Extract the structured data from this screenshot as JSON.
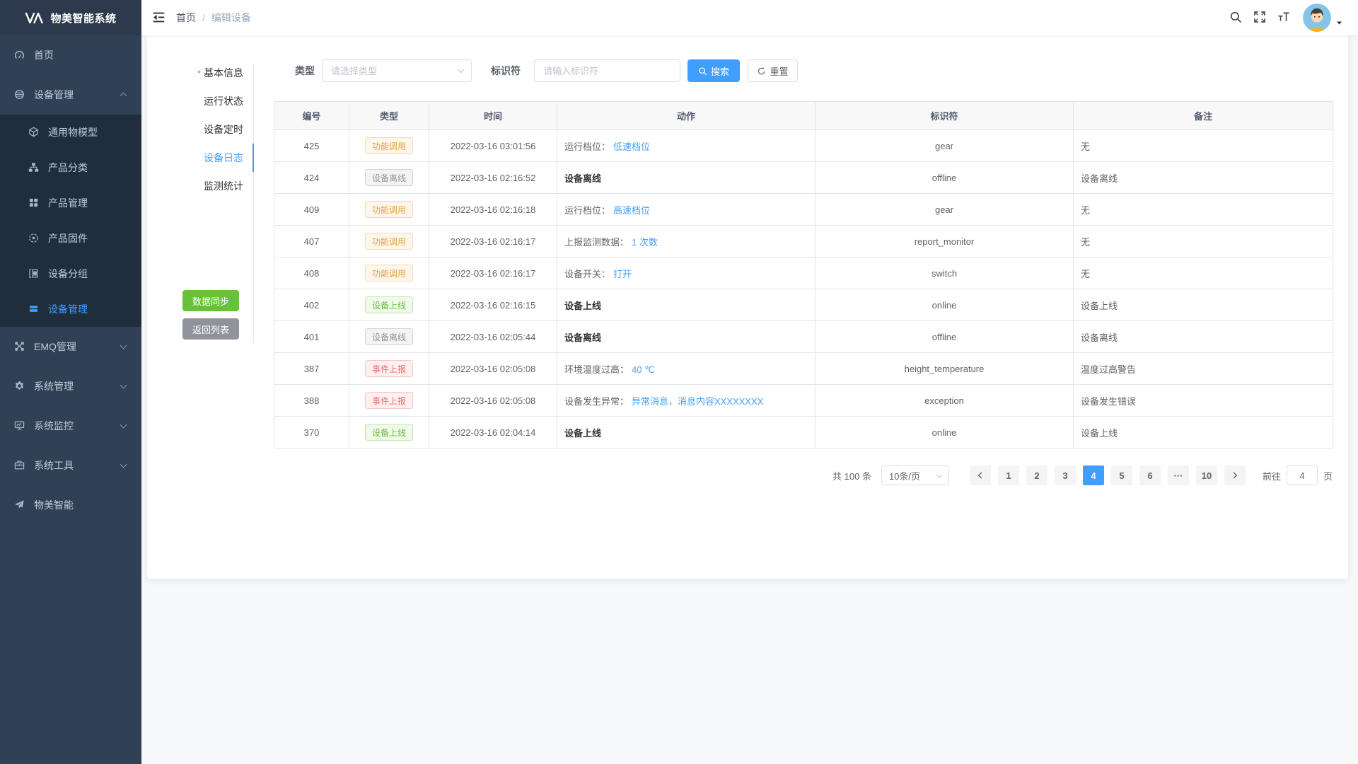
{
  "app": {
    "title": "物美智能系统",
    "logo_icon": "logo-vm-icon"
  },
  "colors": {
    "accent": "#409eff",
    "success": "#67c23a",
    "warning": "#e6a23c",
    "danger": "#f56c6c",
    "info": "#909399",
    "sidebar_bg": "#304156",
    "submenu_bg": "#1f2d3d"
  },
  "sidebar": {
    "items": [
      {
        "label": "首页",
        "icon": "dashboard-icon",
        "level": "1"
      },
      {
        "label": "设备管理",
        "icon": "devices-icon",
        "level": "1",
        "chevron": "up"
      },
      {
        "label": "通用物模型",
        "icon": "cube-icon",
        "level": "2"
      },
      {
        "label": "产品分类",
        "icon": "sitemap-icon",
        "level": "2"
      },
      {
        "label": "产品管理",
        "icon": "grid-icon",
        "level": "2"
      },
      {
        "label": "产品固件",
        "icon": "firmware-icon",
        "level": "2"
      },
      {
        "label": "设备分组",
        "icon": "group-icon",
        "level": "2"
      },
      {
        "label": "设备管理",
        "icon": "device-list-icon",
        "level": "2",
        "active": true
      },
      {
        "label": "EMQ管理",
        "icon": "emq-icon",
        "level": "1",
        "chevron": "down"
      },
      {
        "label": "系统管理",
        "icon": "gear-icon",
        "level": "1",
        "chevron": "down"
      },
      {
        "label": "系统监控",
        "icon": "monitor-icon",
        "level": "1",
        "chevron": "down"
      },
      {
        "label": "系统工具",
        "icon": "toolbox-icon",
        "level": "1",
        "chevron": "down"
      },
      {
        "label": "物美智能",
        "icon": "paper-plane-icon",
        "level": "1"
      }
    ]
  },
  "header": {
    "fold_icon": "fold-icon",
    "breadcrumb_home": "首页",
    "breadcrumb_separator": "/",
    "breadcrumb_current": "编辑设备",
    "icons": {
      "search": "search-icon",
      "fullscreen": "fullscreen-icon",
      "fontsize": "font-size-icon",
      "avatar": "avatar-image",
      "caret": "caret-down-icon"
    }
  },
  "tabs": {
    "required_mark": "*",
    "items": [
      {
        "label": "基本信息",
        "required": true
      },
      {
        "label": "运行状态"
      },
      {
        "label": "设备定时"
      },
      {
        "label": "设备日志",
        "active": true
      },
      {
        "label": "监测统计"
      }
    ]
  },
  "actions": {
    "sync_label": "数据同步",
    "back_label": "返回列表"
  },
  "filter": {
    "type_label": "类型",
    "type_placeholder": "请选择类型",
    "select_caret_icon": "chevron-down-icon",
    "identifier_label": "标识符",
    "identifier_placeholder": "请输入标识符",
    "search_label": "搜索",
    "search_icon": "search-icon",
    "reset_label": "重置",
    "reset_icon": "refresh-icon"
  },
  "table": {
    "columns": [
      "编号",
      "类型",
      "时间",
      "动作",
      "标识符",
      "备注"
    ],
    "rows": [
      {
        "id": "425",
        "tag": {
          "label": "功能调用",
          "type": "warning"
        },
        "time": "2022-03-16 03:01:56",
        "action": {
          "text": "运行档位：",
          "link": "低速档位",
          "bold": false
        },
        "identifier": "gear",
        "remark": "无"
      },
      {
        "id": "424",
        "tag": {
          "label": "设备离线",
          "type": "info"
        },
        "time": "2022-03-16 02:16:52",
        "action": {
          "text": "设备离线",
          "link": "",
          "bold": true
        },
        "identifier": "offline",
        "remark": "设备离线"
      },
      {
        "id": "409",
        "tag": {
          "label": "功能调用",
          "type": "warning"
        },
        "time": "2022-03-16 02:16:18",
        "action": {
          "text": "运行档位：",
          "link": "高速档位",
          "bold": false
        },
        "identifier": "gear",
        "remark": "无"
      },
      {
        "id": "407",
        "tag": {
          "label": "功能调用",
          "type": "warning"
        },
        "time": "2022-03-16 02:16:17",
        "action": {
          "text": "上报监测数据：",
          "link": "1 次数",
          "bold": false
        },
        "identifier": "report_monitor",
        "remark": "无"
      },
      {
        "id": "408",
        "tag": {
          "label": "功能调用",
          "type": "warning"
        },
        "time": "2022-03-16 02:16:17",
        "action": {
          "text": "设备开关：",
          "link": "打开",
          "bold": false
        },
        "identifier": "switch",
        "remark": "无"
      },
      {
        "id": "402",
        "tag": {
          "label": "设备上线",
          "type": "success"
        },
        "time": "2022-03-16 02:16:15",
        "action": {
          "text": "设备上线",
          "link": "",
          "bold": true
        },
        "identifier": "online",
        "remark": "设备上线"
      },
      {
        "id": "401",
        "tag": {
          "label": "设备离线",
          "type": "info"
        },
        "time": "2022-03-16 02:05:44",
        "action": {
          "text": "设备离线",
          "link": "",
          "bold": true
        },
        "identifier": "offline",
        "remark": "设备离线"
      },
      {
        "id": "387",
        "tag": {
          "label": "事件上报",
          "type": "danger"
        },
        "time": "2022-03-16 02:05:08",
        "action": {
          "text": "环境温度过高：",
          "link": "40 ℃",
          "bold": false
        },
        "identifier": "height_temperature",
        "remark": "温度过高警告"
      },
      {
        "id": "388",
        "tag": {
          "label": "事件上报",
          "type": "danger"
        },
        "time": "2022-03-16 02:05:08",
        "action": {
          "text": "设备发生异常：",
          "link": "异常消息，消息内容XXXXXXXX",
          "bold": false
        },
        "identifier": "exception",
        "remark": "设备发生错误"
      },
      {
        "id": "370",
        "tag": {
          "label": "设备上线",
          "type": "success"
        },
        "time": "2022-03-16 02:04:14",
        "action": {
          "text": "设备上线",
          "link": "",
          "bold": true
        },
        "identifier": "online",
        "remark": "设备上线"
      }
    ]
  },
  "pagination": {
    "total_text": "共 100 条",
    "page_size": "10条/页",
    "size_caret_icon": "chevron-down-icon",
    "prev_icon": "chevron-left-icon",
    "next_icon": "chevron-right-icon",
    "pages": [
      {
        "label": "1"
      },
      {
        "label": "2"
      },
      {
        "label": "3"
      },
      {
        "label": "4",
        "active": true
      },
      {
        "label": "5"
      },
      {
        "label": "6"
      },
      {
        "label": "···"
      },
      {
        "label": "10"
      }
    ],
    "goto_label": "前往",
    "goto_value": "4",
    "goto_suffix": "页"
  }
}
